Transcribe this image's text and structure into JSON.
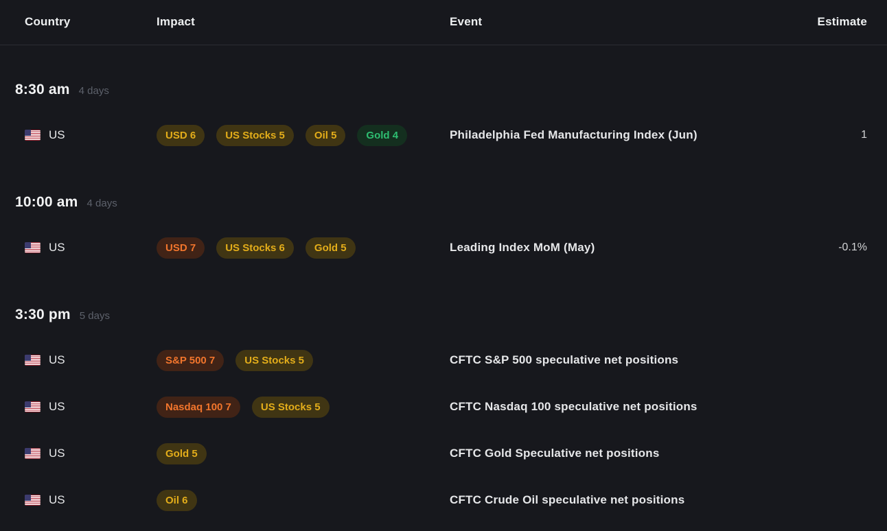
{
  "colors": {
    "background": "#17181d",
    "tag_yellow_text": "#e3ad1a",
    "tag_yellow_bg": "#403513",
    "tag_orange_text": "#f1752c",
    "tag_orange_bg": "#412316",
    "tag_green_text": "#2ebe71",
    "tag_green_bg": "#142f1f"
  },
  "header": {
    "columns": [
      "Country",
      "Impact",
      "Event",
      "Estimate"
    ]
  },
  "groups": [
    {
      "time": "8:30 am",
      "days": "4 days",
      "rows": [
        {
          "country": "US",
          "flag_icon": "us-flag",
          "tags": [
            {
              "label": "USD 6",
              "level": "yellow"
            },
            {
              "label": "US Stocks 5",
              "level": "yellow"
            },
            {
              "label": "Oil 5",
              "level": "yellow"
            },
            {
              "label": "Gold 4",
              "level": "green"
            }
          ],
          "event": "Philadelphia Fed Manufacturing Index (Jun)",
          "estimate": "1"
        }
      ]
    },
    {
      "time": "10:00 am",
      "days": "4 days",
      "rows": [
        {
          "country": "US",
          "flag_icon": "us-flag",
          "tags": [
            {
              "label": "USD 7",
              "level": "orange"
            },
            {
              "label": "US Stocks 6",
              "level": "yellow"
            },
            {
              "label": "Gold 5",
              "level": "yellow"
            }
          ],
          "event": "Leading Index MoM (May)",
          "estimate": "-0.1%"
        }
      ]
    },
    {
      "time": "3:30 pm",
      "days": "5 days",
      "rows": [
        {
          "country": "US",
          "flag_icon": "us-flag",
          "tags": [
            {
              "label": "S&P 500 7",
              "level": "orange"
            },
            {
              "label": "US Stocks 5",
              "level": "yellow"
            }
          ],
          "event": "CFTC S&P 500 speculative net positions",
          "estimate": ""
        },
        {
          "country": "US",
          "flag_icon": "us-flag",
          "tags": [
            {
              "label": "Nasdaq 100 7",
              "level": "orange"
            },
            {
              "label": "US Stocks 5",
              "level": "yellow"
            }
          ],
          "event": "CFTC Nasdaq 100 speculative net positions",
          "estimate": ""
        },
        {
          "country": "US",
          "flag_icon": "us-flag",
          "tags": [
            {
              "label": "Gold 5",
              "level": "yellow"
            }
          ],
          "event": "CFTC Gold Speculative net positions",
          "estimate": ""
        },
        {
          "country": "US",
          "flag_icon": "us-flag",
          "tags": [
            {
              "label": "Oil 6",
              "level": "yellow"
            }
          ],
          "event": "CFTC Crude Oil speculative net positions",
          "estimate": ""
        }
      ]
    }
  ]
}
